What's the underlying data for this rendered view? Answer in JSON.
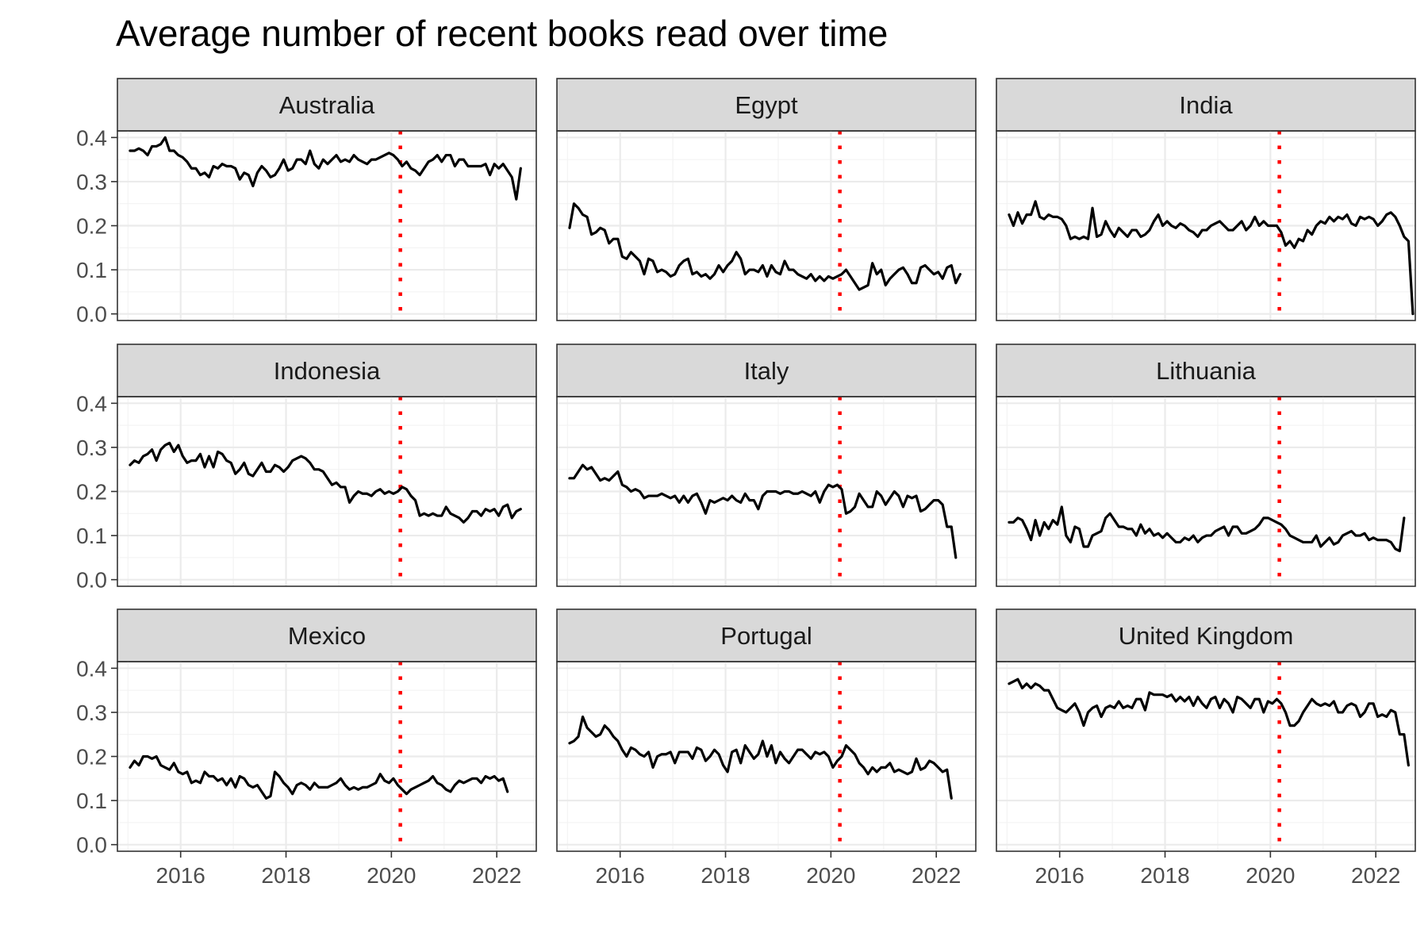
{
  "chart_data": {
    "type": "line",
    "title": "Average number of recent books read over time",
    "xlabel": "",
    "ylabel": "",
    "facet_layout": {
      "rows": 3,
      "cols": 3
    },
    "xlim": [
      2014.8,
      2022.75
    ],
    "ylim": [
      -0.015,
      0.415
    ],
    "x_ticks": [
      2016,
      2018,
      2020,
      2022
    ],
    "x_tick_labels": [
      "2016",
      "2018",
      "2020",
      "2022"
    ],
    "y_ticks": [
      0.0,
      0.1,
      0.2,
      0.3,
      0.4
    ],
    "y_tick_labels": [
      "0.0",
      "0.1",
      "0.2",
      "0.3",
      "0.4"
    ],
    "grid": true,
    "line_color": "#000000",
    "vline": {
      "x": 2020.17,
      "style": "dotted",
      "color": "#ff0000"
    },
    "time_points": {
      "start": 2015.04,
      "step": 0.0833
    },
    "panels": [
      {
        "name": "Australia",
        "values": [
          0.37,
          0.37,
          0.375,
          0.37,
          0.36,
          0.38,
          0.38,
          0.385,
          0.4,
          0.37,
          0.37,
          0.36,
          0.355,
          0.345,
          0.33,
          0.33,
          0.315,
          0.32,
          0.31,
          0.335,
          0.33,
          0.34,
          0.335,
          0.335,
          0.33,
          0.305,
          0.32,
          0.315,
          0.29,
          0.32,
          0.335,
          0.325,
          0.31,
          0.315,
          0.33,
          0.35,
          0.325,
          0.33,
          0.35,
          0.35,
          0.34,
          0.37,
          0.34,
          0.33,
          0.35,
          0.34,
          0.35,
          0.36,
          0.345,
          0.35,
          0.345,
          0.36,
          0.35,
          0.345,
          0.34,
          0.35,
          0.35,
          0.355,
          0.36,
          0.365,
          0.36,
          0.35,
          0.335,
          0.345,
          0.33,
          0.325,
          0.315,
          0.33,
          0.345,
          0.35,
          0.36,
          0.345,
          0.36,
          0.36,
          0.335,
          0.35,
          0.35,
          0.335,
          0.335,
          0.335,
          0.335,
          0.34,
          0.315,
          0.34,
          0.33,
          0.34,
          0.325,
          0.31,
          0.26,
          0.33
        ]
      },
      {
        "name": "Egypt",
        "values": [
          0.195,
          0.25,
          0.24,
          0.225,
          0.22,
          0.18,
          0.185,
          0.195,
          0.19,
          0.16,
          0.17,
          0.17,
          0.13,
          0.125,
          0.14,
          0.13,
          0.12,
          0.09,
          0.125,
          0.12,
          0.095,
          0.1,
          0.095,
          0.085,
          0.09,
          0.11,
          0.12,
          0.125,
          0.09,
          0.095,
          0.085,
          0.09,
          0.08,
          0.09,
          0.11,
          0.095,
          0.11,
          0.12,
          0.14,
          0.125,
          0.09,
          0.1,
          0.1,
          0.095,
          0.11,
          0.085,
          0.11,
          0.095,
          0.09,
          0.12,
          0.1,
          0.1,
          0.09,
          0.085,
          0.08,
          0.09,
          0.075,
          0.085,
          0.075,
          0.085,
          0.08,
          0.085,
          0.09,
          0.1,
          0.085,
          0.07,
          0.055,
          0.06,
          0.065,
          0.115,
          0.09,
          0.1,
          0.065,
          0.08,
          0.09,
          0.1,
          0.105,
          0.09,
          0.07,
          0.07,
          0.105,
          0.11,
          0.1,
          0.09,
          0.095,
          0.08,
          0.105,
          0.11,
          0.07,
          0.09
        ]
      },
      {
        "name": "India",
        "values": [
          0.225,
          0.2,
          0.23,
          0.205,
          0.225,
          0.225,
          0.255,
          0.22,
          0.215,
          0.225,
          0.22,
          0.22,
          0.215,
          0.2,
          0.17,
          0.175,
          0.17,
          0.175,
          0.17,
          0.24,
          0.175,
          0.18,
          0.21,
          0.19,
          0.175,
          0.195,
          0.185,
          0.175,
          0.19,
          0.19,
          0.175,
          0.18,
          0.19,
          0.21,
          0.225,
          0.2,
          0.21,
          0.2,
          0.195,
          0.205,
          0.2,
          0.19,
          0.185,
          0.175,
          0.19,
          0.19,
          0.2,
          0.205,
          0.21,
          0.2,
          0.19,
          0.19,
          0.2,
          0.21,
          0.19,
          0.2,
          0.22,
          0.2,
          0.21,
          0.2,
          0.2,
          0.2,
          0.185,
          0.155,
          0.165,
          0.15,
          0.17,
          0.165,
          0.19,
          0.18,
          0.2,
          0.21,
          0.205,
          0.22,
          0.21,
          0.22,
          0.215,
          0.225,
          0.205,
          0.2,
          0.22,
          0.215,
          0.22,
          0.215,
          0.2,
          0.21,
          0.225,
          0.23,
          0.22,
          0.2,
          0.175,
          0.165,
          0.0
        ]
      },
      {
        "name": "Indonesia",
        "values": [
          0.26,
          0.27,
          0.265,
          0.28,
          0.285,
          0.295,
          0.27,
          0.295,
          0.305,
          0.31,
          0.29,
          0.305,
          0.28,
          0.265,
          0.27,
          0.27,
          0.285,
          0.255,
          0.28,
          0.255,
          0.29,
          0.285,
          0.27,
          0.265,
          0.24,
          0.25,
          0.265,
          0.24,
          0.235,
          0.25,
          0.265,
          0.245,
          0.245,
          0.26,
          0.255,
          0.245,
          0.255,
          0.27,
          0.275,
          0.28,
          0.275,
          0.265,
          0.25,
          0.25,
          0.245,
          0.23,
          0.215,
          0.22,
          0.21,
          0.21,
          0.175,
          0.19,
          0.2,
          0.195,
          0.195,
          0.19,
          0.2,
          0.205,
          0.195,
          0.2,
          0.195,
          0.2,
          0.21,
          0.205,
          0.19,
          0.18,
          0.145,
          0.15,
          0.145,
          0.15,
          0.145,
          0.145,
          0.165,
          0.15,
          0.145,
          0.14,
          0.13,
          0.14,
          0.155,
          0.155,
          0.145,
          0.16,
          0.155,
          0.16,
          0.145,
          0.165,
          0.17,
          0.14,
          0.155,
          0.16
        ]
      },
      {
        "name": "Italy",
        "values": [
          0.23,
          0.23,
          0.245,
          0.26,
          0.25,
          0.255,
          0.24,
          0.225,
          0.23,
          0.225,
          0.235,
          0.245,
          0.215,
          0.21,
          0.2,
          0.205,
          0.2,
          0.185,
          0.19,
          0.19,
          0.19,
          0.195,
          0.19,
          0.185,
          0.19,
          0.175,
          0.19,
          0.175,
          0.19,
          0.195,
          0.175,
          0.15,
          0.18,
          0.175,
          0.18,
          0.185,
          0.18,
          0.19,
          0.18,
          0.175,
          0.195,
          0.18,
          0.18,
          0.16,
          0.19,
          0.2,
          0.2,
          0.2,
          0.195,
          0.2,
          0.2,
          0.195,
          0.195,
          0.2,
          0.195,
          0.19,
          0.2,
          0.175,
          0.2,
          0.215,
          0.21,
          0.215,
          0.205,
          0.15,
          0.155,
          0.165,
          0.195,
          0.18,
          0.165,
          0.165,
          0.2,
          0.19,
          0.17,
          0.185,
          0.2,
          0.19,
          0.165,
          0.19,
          0.185,
          0.19,
          0.155,
          0.16,
          0.17,
          0.18,
          0.18,
          0.17,
          0.12,
          0.12,
          0.05
        ]
      },
      {
        "name": "Lithuania",
        "values": [
          0.13,
          0.13,
          0.14,
          0.135,
          0.115,
          0.09,
          0.135,
          0.1,
          0.13,
          0.115,
          0.135,
          0.125,
          0.165,
          0.1,
          0.085,
          0.12,
          0.115,
          0.075,
          0.075,
          0.1,
          0.105,
          0.11,
          0.14,
          0.15,
          0.135,
          0.12,
          0.12,
          0.115,
          0.115,
          0.1,
          0.125,
          0.105,
          0.115,
          0.1,
          0.105,
          0.095,
          0.105,
          0.095,
          0.085,
          0.085,
          0.095,
          0.09,
          0.1,
          0.085,
          0.095,
          0.1,
          0.1,
          0.11,
          0.115,
          0.12,
          0.1,
          0.12,
          0.12,
          0.105,
          0.105,
          0.11,
          0.115,
          0.125,
          0.14,
          0.14,
          0.135,
          0.13,
          0.125,
          0.115,
          0.1,
          0.095,
          0.09,
          0.085,
          0.085,
          0.085,
          0.1,
          0.075,
          0.085,
          0.095,
          0.08,
          0.085,
          0.1,
          0.105,
          0.11,
          0.1,
          0.1,
          0.105,
          0.09,
          0.095,
          0.09,
          0.09,
          0.09,
          0.085,
          0.07,
          0.065,
          0.14
        ]
      },
      {
        "name": "Mexico",
        "values": [
          0.175,
          0.19,
          0.18,
          0.2,
          0.2,
          0.195,
          0.2,
          0.18,
          0.175,
          0.17,
          0.185,
          0.165,
          0.16,
          0.165,
          0.14,
          0.145,
          0.14,
          0.165,
          0.155,
          0.155,
          0.145,
          0.15,
          0.135,
          0.15,
          0.13,
          0.155,
          0.15,
          0.135,
          0.13,
          0.135,
          0.12,
          0.105,
          0.11,
          0.165,
          0.155,
          0.14,
          0.13,
          0.115,
          0.135,
          0.14,
          0.135,
          0.125,
          0.14,
          0.13,
          0.13,
          0.13,
          0.135,
          0.14,
          0.15,
          0.135,
          0.125,
          0.13,
          0.125,
          0.13,
          0.13,
          0.135,
          0.14,
          0.16,
          0.145,
          0.14,
          0.15,
          0.135,
          0.125,
          0.115,
          0.125,
          0.13,
          0.135,
          0.14,
          0.145,
          0.155,
          0.14,
          0.135,
          0.125,
          0.12,
          0.135,
          0.145,
          0.14,
          0.145,
          0.15,
          0.15,
          0.14,
          0.155,
          0.15,
          0.155,
          0.145,
          0.15,
          0.12
        ]
      },
      {
        "name": "Portugal",
        "values": [
          0.23,
          0.235,
          0.245,
          0.29,
          0.265,
          0.255,
          0.245,
          0.25,
          0.27,
          0.26,
          0.245,
          0.235,
          0.215,
          0.2,
          0.22,
          0.215,
          0.205,
          0.2,
          0.21,
          0.175,
          0.2,
          0.205,
          0.205,
          0.21,
          0.185,
          0.21,
          0.21,
          0.21,
          0.195,
          0.22,
          0.215,
          0.19,
          0.2,
          0.215,
          0.205,
          0.18,
          0.165,
          0.21,
          0.215,
          0.185,
          0.225,
          0.21,
          0.195,
          0.205,
          0.235,
          0.2,
          0.225,
          0.185,
          0.21,
          0.195,
          0.185,
          0.2,
          0.215,
          0.215,
          0.205,
          0.195,
          0.21,
          0.205,
          0.21,
          0.2,
          0.175,
          0.19,
          0.2,
          0.225,
          0.215,
          0.205,
          0.185,
          0.175,
          0.16,
          0.175,
          0.165,
          0.175,
          0.175,
          0.185,
          0.165,
          0.17,
          0.165,
          0.16,
          0.165,
          0.195,
          0.17,
          0.175,
          0.19,
          0.185,
          0.175,
          0.165,
          0.17,
          0.105
        ]
      },
      {
        "name": "United Kingdom",
        "values": [
          0.365,
          0.37,
          0.375,
          0.355,
          0.365,
          0.355,
          0.365,
          0.36,
          0.35,
          0.35,
          0.33,
          0.31,
          0.305,
          0.3,
          0.31,
          0.32,
          0.3,
          0.27,
          0.3,
          0.31,
          0.315,
          0.29,
          0.31,
          0.315,
          0.31,
          0.325,
          0.31,
          0.315,
          0.31,
          0.33,
          0.33,
          0.305,
          0.345,
          0.34,
          0.34,
          0.34,
          0.335,
          0.34,
          0.325,
          0.335,
          0.325,
          0.335,
          0.315,
          0.335,
          0.32,
          0.31,
          0.33,
          0.335,
          0.31,
          0.33,
          0.32,
          0.3,
          0.335,
          0.33,
          0.32,
          0.31,
          0.33,
          0.33,
          0.3,
          0.325,
          0.32,
          0.33,
          0.32,
          0.3,
          0.27,
          0.27,
          0.28,
          0.3,
          0.315,
          0.33,
          0.32,
          0.315,
          0.32,
          0.315,
          0.325,
          0.3,
          0.3,
          0.315,
          0.32,
          0.315,
          0.29,
          0.3,
          0.32,
          0.32,
          0.29,
          0.295,
          0.29,
          0.305,
          0.3,
          0.25,
          0.25,
          0.18
        ]
      }
    ]
  }
}
